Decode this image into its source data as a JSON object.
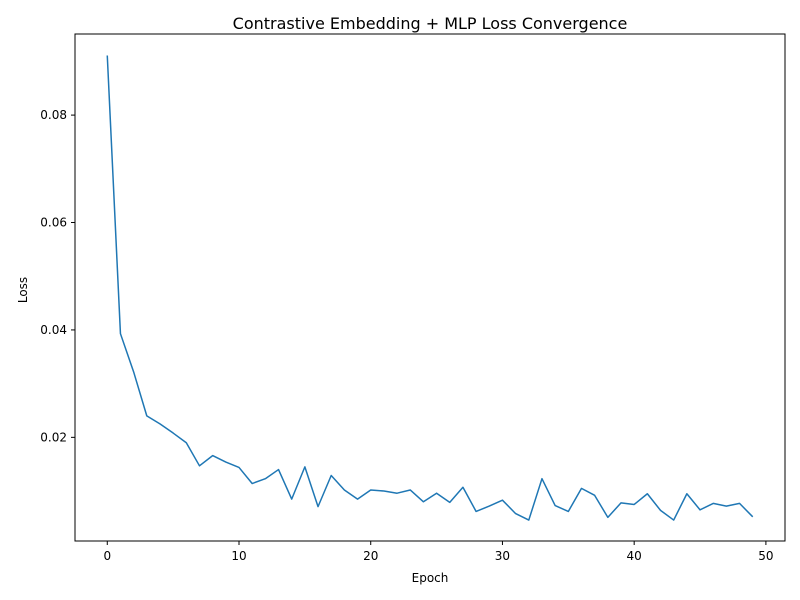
{
  "chart_data": {
    "type": "line",
    "title": "Contrastive Embedding + MLP Loss Convergence",
    "xlabel": "Epoch",
    "ylabel": "Loss",
    "xlim": [
      -2.45,
      51.45
    ],
    "ylim": [
      0.0007,
      0.0951
    ],
    "x_ticks": [
      0,
      10,
      20,
      30,
      40,
      50
    ],
    "x_tick_labels": [
      "0",
      "10",
      "20",
      "30",
      "40",
      "50"
    ],
    "y_ticks": [
      0.02,
      0.04,
      0.06,
      0.08
    ],
    "y_tick_labels": [
      "0.02",
      "0.04",
      "0.06",
      "0.08"
    ],
    "grid": false,
    "series": [
      {
        "name": "Loss",
        "color": "#1f77b4",
        "x": [
          0,
          1,
          2,
          3,
          4,
          5,
          6,
          7,
          8,
          9,
          10,
          11,
          12,
          13,
          14,
          15,
          16,
          17,
          18,
          19,
          20,
          21,
          22,
          23,
          24,
          25,
          26,
          27,
          28,
          29,
          30,
          31,
          32,
          33,
          34,
          35,
          36,
          37,
          38,
          39,
          40,
          41,
          42,
          43,
          44,
          45,
          46,
          47,
          48,
          49
        ],
        "values": [
          0.0911,
          0.0393,
          0.0322,
          0.024,
          0.0225,
          0.0208,
          0.019,
          0.0147,
          0.0166,
          0.0154,
          0.0144,
          0.0114,
          0.0123,
          0.014,
          0.0085,
          0.0145,
          0.0071,
          0.0129,
          0.0102,
          0.0085,
          0.0102,
          0.01,
          0.0096,
          0.0102,
          0.008,
          0.0096,
          0.0079,
          0.0107,
          0.0062,
          0.0072,
          0.0083,
          0.0058,
          0.0046,
          0.0123,
          0.0073,
          0.0062,
          0.0105,
          0.0092,
          0.0051,
          0.0078,
          0.0075,
          0.0095,
          0.0064,
          0.0046,
          0.0095,
          0.0065,
          0.0077,
          0.0072,
          0.0077,
          0.0052
        ]
      }
    ]
  }
}
